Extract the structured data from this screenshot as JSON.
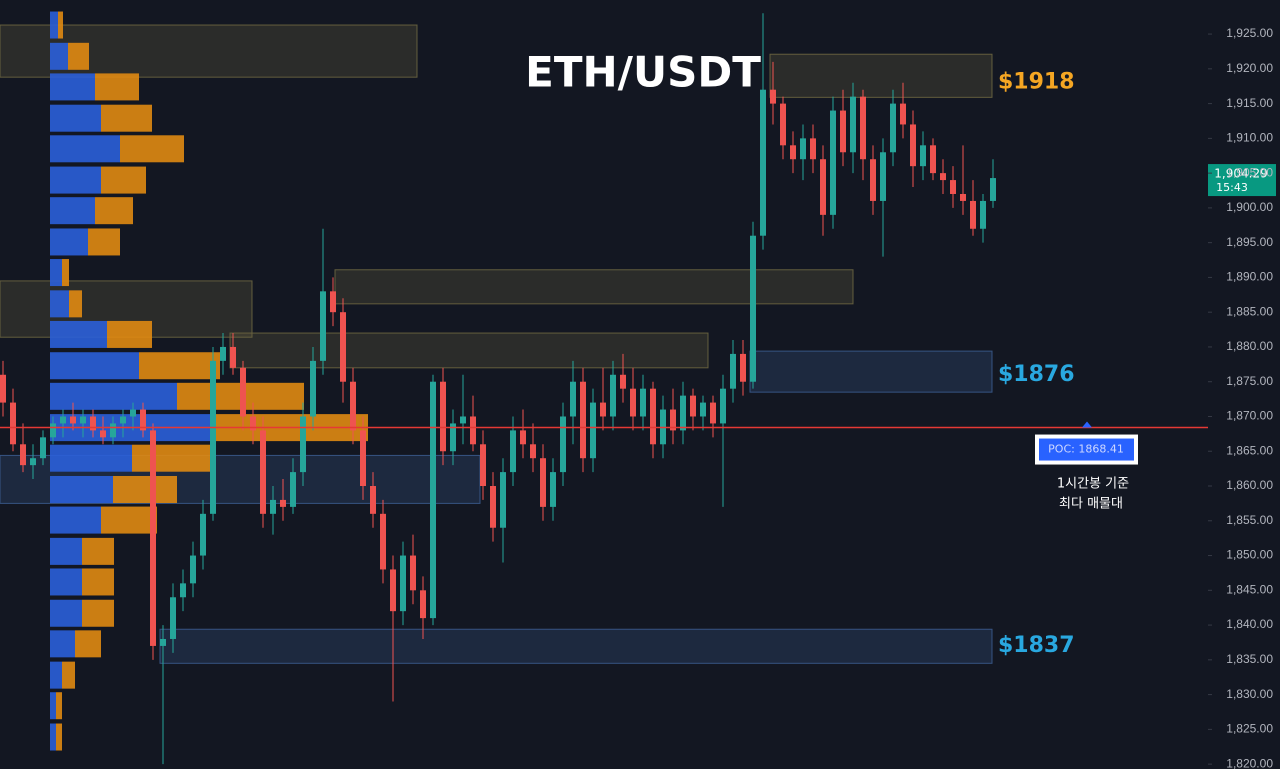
{
  "chart_data": {
    "type": "candlestick",
    "title": "ETH/USDT",
    "ylim": [
      1819.3,
      1929.9
    ],
    "yticks": [
      {
        "value": 1820,
        "label": "1,820.00"
      },
      {
        "value": 1825,
        "label": "1,825.00"
      },
      {
        "value": 1830,
        "label": "1,830.00"
      },
      {
        "value": 1835,
        "label": "1,835.00"
      },
      {
        "value": 1840,
        "label": "1,840.00"
      },
      {
        "value": 1845,
        "label": "1,845.00"
      },
      {
        "value": 1850,
        "label": "1,850.00"
      },
      {
        "value": 1855,
        "label": "1,855.00"
      },
      {
        "value": 1860,
        "label": "1,860.00"
      },
      {
        "value": 1865,
        "label": "1,865.00"
      },
      {
        "value": 1870,
        "label": "1,870.00"
      },
      {
        "value": 1875,
        "label": "1,875.00"
      },
      {
        "value": 1880,
        "label": "1,880.00"
      },
      {
        "value": 1885,
        "label": "1,885.00"
      },
      {
        "value": 1890,
        "label": "1,890.00"
      },
      {
        "value": 1895,
        "label": "1,895.00"
      },
      {
        "value": 1900,
        "label": "1,900.00"
      },
      {
        "value": 1905,
        "label": "1,905.00"
      },
      {
        "value": 1910,
        "label": "1,910.00"
      },
      {
        "value": 1915,
        "label": "1,915.00"
      },
      {
        "value": 1920,
        "label": "1,920.00"
      },
      {
        "value": 1925,
        "label": "1,925.00"
      }
    ],
    "up_color": "#26a69a",
    "down_color": "#ef5350",
    "ohlc": [
      [
        1876,
        1878,
        1870,
        1872
      ],
      [
        1872,
        1874,
        1865,
        1866
      ],
      [
        1866,
        1869,
        1862,
        1863
      ],
      [
        1863,
        1866,
        1861,
        1864
      ],
      [
        1864,
        1868,
        1863,
        1867
      ],
      [
        1867,
        1870,
        1866,
        1869
      ],
      [
        1869,
        1871,
        1867,
        1870
      ],
      [
        1870,
        1872,
        1868,
        1869
      ],
      [
        1869,
        1871,
        1867,
        1870
      ],
      [
        1870,
        1871,
        1867,
        1868
      ],
      [
        1868,
        1870,
        1866,
        1867
      ],
      [
        1867,
        1870,
        1866,
        1869
      ],
      [
        1869,
        1871,
        1867,
        1870
      ],
      [
        1870,
        1872,
        1868,
        1871
      ],
      [
        1871,
        1872,
        1867,
        1868
      ],
      [
        1868,
        1869,
        1835,
        1837
      ],
      [
        1837,
        1840,
        1820,
        1838
      ],
      [
        1838,
        1846,
        1836,
        1844
      ],
      [
        1844,
        1848,
        1842,
        1846
      ],
      [
        1846,
        1852,
        1844,
        1850
      ],
      [
        1850,
        1858,
        1848,
        1856
      ],
      [
        1856,
        1880,
        1855,
        1878
      ],
      [
        1878,
        1882,
        1876,
        1880
      ],
      [
        1880,
        1882,
        1876,
        1877
      ],
      [
        1877,
        1878,
        1868,
        1870
      ],
      [
        1870,
        1872,
        1866,
        1868
      ],
      [
        1868,
        1870,
        1854,
        1856
      ],
      [
        1856,
        1860,
        1853,
        1858
      ],
      [
        1858,
        1861,
        1855,
        1857
      ],
      [
        1857,
        1864,
        1856,
        1862
      ],
      [
        1862,
        1872,
        1860,
        1870
      ],
      [
        1870,
        1880,
        1868,
        1878
      ],
      [
        1878,
        1897,
        1876,
        1888
      ],
      [
        1888,
        1890,
        1883,
        1885
      ],
      [
        1885,
        1887,
        1872,
        1875
      ],
      [
        1875,
        1877,
        1866,
        1868
      ],
      [
        1868,
        1870,
        1858,
        1860
      ],
      [
        1860,
        1862,
        1854,
        1856
      ],
      [
        1856,
        1858,
        1846,
        1848
      ],
      [
        1848,
        1850,
        1829,
        1842
      ],
      [
        1842,
        1852,
        1840,
        1850
      ],
      [
        1850,
        1853,
        1843,
        1845
      ],
      [
        1845,
        1847,
        1838,
        1841
      ],
      [
        1841,
        1876,
        1840,
        1875
      ],
      [
        1875,
        1877,
        1863,
        1865
      ],
      [
        1865,
        1871,
        1863,
        1869
      ],
      [
        1869,
        1876,
        1866,
        1870
      ],
      [
        1870,
        1873,
        1865,
        1866
      ],
      [
        1866,
        1868,
        1858,
        1860
      ],
      [
        1860,
        1862,
        1852,
        1854
      ],
      [
        1854,
        1864,
        1849,
        1862
      ],
      [
        1862,
        1870,
        1860,
        1868
      ],
      [
        1868,
        1871,
        1864,
        1866
      ],
      [
        1866,
        1869,
        1862,
        1864
      ],
      [
        1864,
        1866,
        1855,
        1857
      ],
      [
        1857,
        1864,
        1855,
        1862
      ],
      [
        1862,
        1872,
        1860,
        1870
      ],
      [
        1870,
        1878,
        1866,
        1875
      ],
      [
        1875,
        1877,
        1862,
        1864
      ],
      [
        1864,
        1874,
        1862,
        1872
      ],
      [
        1872,
        1877,
        1868,
        1870
      ],
      [
        1870,
        1878,
        1868,
        1876
      ],
      [
        1876,
        1879,
        1872,
        1874
      ],
      [
        1874,
        1877,
        1868,
        1870
      ],
      [
        1870,
        1876,
        1868,
        1874
      ],
      [
        1874,
        1875,
        1864,
        1866
      ],
      [
        1866,
        1873,
        1864,
        1871
      ],
      [
        1871,
        1874,
        1866,
        1868
      ],
      [
        1868,
        1875,
        1866,
        1873
      ],
      [
        1873,
        1874,
        1868,
        1870
      ],
      [
        1870,
        1873,
        1868,
        1872
      ],
      [
        1872,
        1873,
        1867,
        1869
      ],
      [
        1869,
        1876,
        1857,
        1874
      ],
      [
        1874,
        1881,
        1872,
        1879
      ],
      [
        1879,
        1881,
        1873,
        1875
      ],
      [
        1875,
        1898,
        1874,
        1896
      ],
      [
        1896,
        1928,
        1894,
        1917
      ],
      [
        1917,
        1921,
        1912,
        1915
      ],
      [
        1915,
        1916,
        1907,
        1909
      ],
      [
        1909,
        1911,
        1905,
        1907
      ],
      [
        1907,
        1912,
        1904,
        1910
      ],
      [
        1910,
        1912,
        1905,
        1907
      ],
      [
        1907,
        1909,
        1896,
        1899
      ],
      [
        1899,
        1916,
        1897,
        1914
      ],
      [
        1914,
        1917,
        1906,
        1908
      ],
      [
        1908,
        1918,
        1905,
        1916
      ],
      [
        1916,
        1917,
        1904,
        1907
      ],
      [
        1907,
        1909,
        1899,
        1901
      ],
      [
        1901,
        1910,
        1893,
        1908
      ],
      [
        1908,
        1917,
        1906,
        1915
      ],
      [
        1915,
        1918,
        1910,
        1912
      ],
      [
        1912,
        1914,
        1903,
        1906
      ],
      [
        1906,
        1911,
        1904,
        1909
      ],
      [
        1909,
        1910,
        1904,
        1905
      ],
      [
        1905,
        1907,
        1902,
        1904
      ],
      [
        1904,
        1906,
        1900,
        1902
      ],
      [
        1902,
        1909,
        1899,
        1901
      ],
      [
        1901,
        1904,
        1896,
        1897
      ],
      [
        1897,
        1902,
        1895,
        1901
      ],
      [
        1901,
        1907,
        1900,
        1904.29
      ]
    ],
    "profile": {
      "buy_color": "#2b5fd9",
      "sell_color": "#e08a12",
      "rows": [
        {
          "price": 1926.3,
          "buy": 8,
          "sell": 5
        },
        {
          "price": 1921.8,
          "buy": 18,
          "sell": 21
        },
        {
          "price": 1917.4,
          "buy": 45,
          "sell": 44
        },
        {
          "price": 1912.9,
          "buy": 51,
          "sell": 51
        },
        {
          "price": 1908.5,
          "buy": 70,
          "sell": 64
        },
        {
          "price": 1904.0,
          "buy": 51,
          "sell": 45
        },
        {
          "price": 1899.6,
          "buy": 45,
          "sell": 38
        },
        {
          "price": 1895.1,
          "buy": 38,
          "sell": 32
        },
        {
          "price": 1890.7,
          "buy": 12,
          "sell": 7
        },
        {
          "price": 1886.2,
          "buy": 19,
          "sell": 13
        },
        {
          "price": 1881.8,
          "buy": 57,
          "sell": 45
        },
        {
          "price": 1877.3,
          "buy": 89,
          "sell": 81
        },
        {
          "price": 1872.9,
          "buy": 127,
          "sell": 127
        },
        {
          "price": 1868.4,
          "buy": 160,
          "sell": 158
        },
        {
          "price": 1864.0,
          "buy": 82,
          "sell": 83
        },
        {
          "price": 1859.5,
          "buy": 63,
          "sell": 64
        },
        {
          "price": 1855.1,
          "buy": 51,
          "sell": 56
        },
        {
          "price": 1850.6,
          "buy": 32,
          "sell": 32
        },
        {
          "price": 1846.2,
          "buy": 32,
          "sell": 32
        },
        {
          "price": 1841.7,
          "buy": 32,
          "sell": 32
        },
        {
          "price": 1837.3,
          "buy": 25,
          "sell": 26
        },
        {
          "price": 1832.8,
          "buy": 12,
          "sell": 13
        },
        {
          "price": 1828.4,
          "buy": 6,
          "sell": 6
        },
        {
          "price": 1823.9,
          "buy": 6,
          "sell": 6
        }
      ]
    },
    "zones": [
      {
        "top": 1926.3,
        "bottom": 1918.8,
        "fill": "#6b6540"
      },
      {
        "top": 1922.1,
        "bottom": 1915.9,
        "fill": "#6b6540",
        "label": {
          "value": 1918,
          "label": "$1918"
        },
        "label_color": "#f5a623"
      },
      {
        "top": 1891.1,
        "bottom": 1886.2,
        "fill": "#6b6540"
      },
      {
        "top": 1889.5,
        "bottom": 1881.4,
        "fill": "#6b6540"
      },
      {
        "top": 1882.0,
        "bottom": 1877.0,
        "fill": "#6b6540"
      },
      {
        "top": 1879.4,
        "bottom": 1873.5,
        "fill": "#3a5a8c",
        "label": {
          "value": 1876,
          "label": "$1876"
        },
        "label_color": "#29a8e0"
      },
      {
        "top": 1864.4,
        "bottom": 1857.5,
        "fill": "#3a5a8c"
      },
      {
        "top": 1839.4,
        "bottom": 1834.5,
        "fill": "#3a5a8c",
        "label": {
          "value": 1837,
          "label": "$1837"
        },
        "label_color": "#29a8e0"
      }
    ],
    "poc": {
      "value": 1868.41,
      "label": "POC: 1868.41",
      "color": "#e53935"
    },
    "annotation": [
      "1시간봉 기준",
      "최다 매물대"
    ],
    "last_price": {
      "value": 1904.29,
      "label": "1,904.29"
    },
    "last_time": "15:43"
  }
}
